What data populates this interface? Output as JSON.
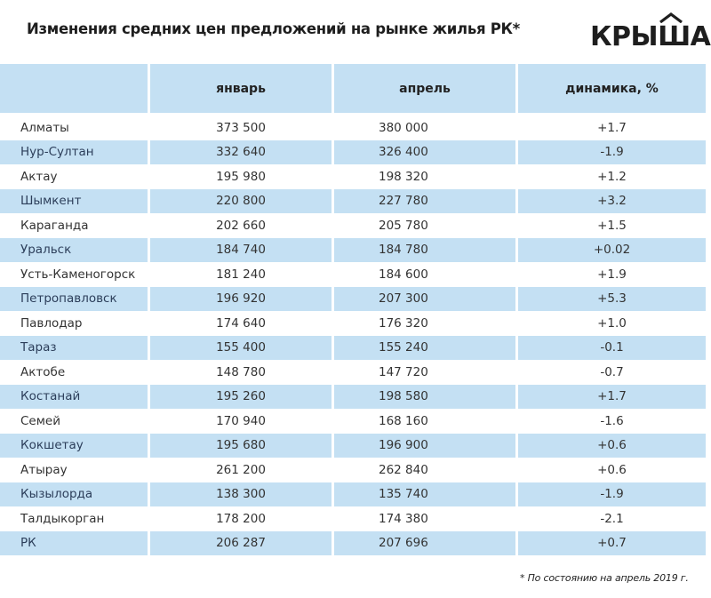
{
  "header": {
    "title": "Изменения средних цен предложений на рынке жилья РК*",
    "logo_text": "КРЫША",
    "logo_icon": "roof-icon"
  },
  "colors": {
    "row_highlight": "#c4e0f3",
    "text": "#2b2b2b",
    "title": "#1e1e1e"
  },
  "table": {
    "columns": [
      "",
      "январь",
      "апрель",
      "динамика, %"
    ],
    "rows": [
      {
        "city": "Алматы",
        "january": "373 500",
        "april": "380 000",
        "change": "+1.7"
      },
      {
        "city": "Нур-Султан",
        "january": "332 640",
        "april": "326 400",
        "change": "-1.9"
      },
      {
        "city": "Актау",
        "january": "195 980",
        "april": "198 320",
        "change": "+1.2"
      },
      {
        "city": "Шымкент",
        "january": "220 800",
        "april": "227 780",
        "change": "+3.2"
      },
      {
        "city": "Караганда",
        "january": "202 660",
        "april": "205 780",
        "change": "+1.5"
      },
      {
        "city": "Уральск",
        "january": "184 740",
        "april": "184 780",
        "change": "+0.02"
      },
      {
        "city": "Усть-Каменогорск",
        "january": "181 240",
        "april": "184 600",
        "change": "+1.9"
      },
      {
        "city": "Петропавловск",
        "january": "196 920",
        "april": "207 300",
        "change": "+5.3"
      },
      {
        "city": "Павлодар",
        "january": "174 640",
        "april": "176 320",
        "change": "+1.0"
      },
      {
        "city": "Тараз",
        "january": "155 400",
        "april": "155 240",
        "change": "-0.1"
      },
      {
        "city": "Актобе",
        "january": "148 780",
        "april": "147 720",
        "change": "-0.7"
      },
      {
        "city": "Костанай",
        "january": "195 260",
        "april": "198 580",
        "change": "+1.7"
      },
      {
        "city": "Семей",
        "january": "170 940",
        "april": "168 160",
        "change": "-1.6"
      },
      {
        "city": "Кокшетау",
        "january": "195 680",
        "april": "196 900",
        "change": "+0.6"
      },
      {
        "city": "Атырау",
        "january": "261 200",
        "april": "262 840",
        "change": "+0.6"
      },
      {
        "city": "Кызылорда",
        "january": "138 300",
        "april": "135 740",
        "change": "-1.9"
      },
      {
        "city": "Талдыкорган",
        "january": "178 200",
        "april": "174 380",
        "change": "-2.1"
      },
      {
        "city": "РК",
        "january": "206 287",
        "april": "207 696",
        "change": "+0.7"
      }
    ]
  },
  "footnote": "* По состоянию на апрель 2019 г."
}
